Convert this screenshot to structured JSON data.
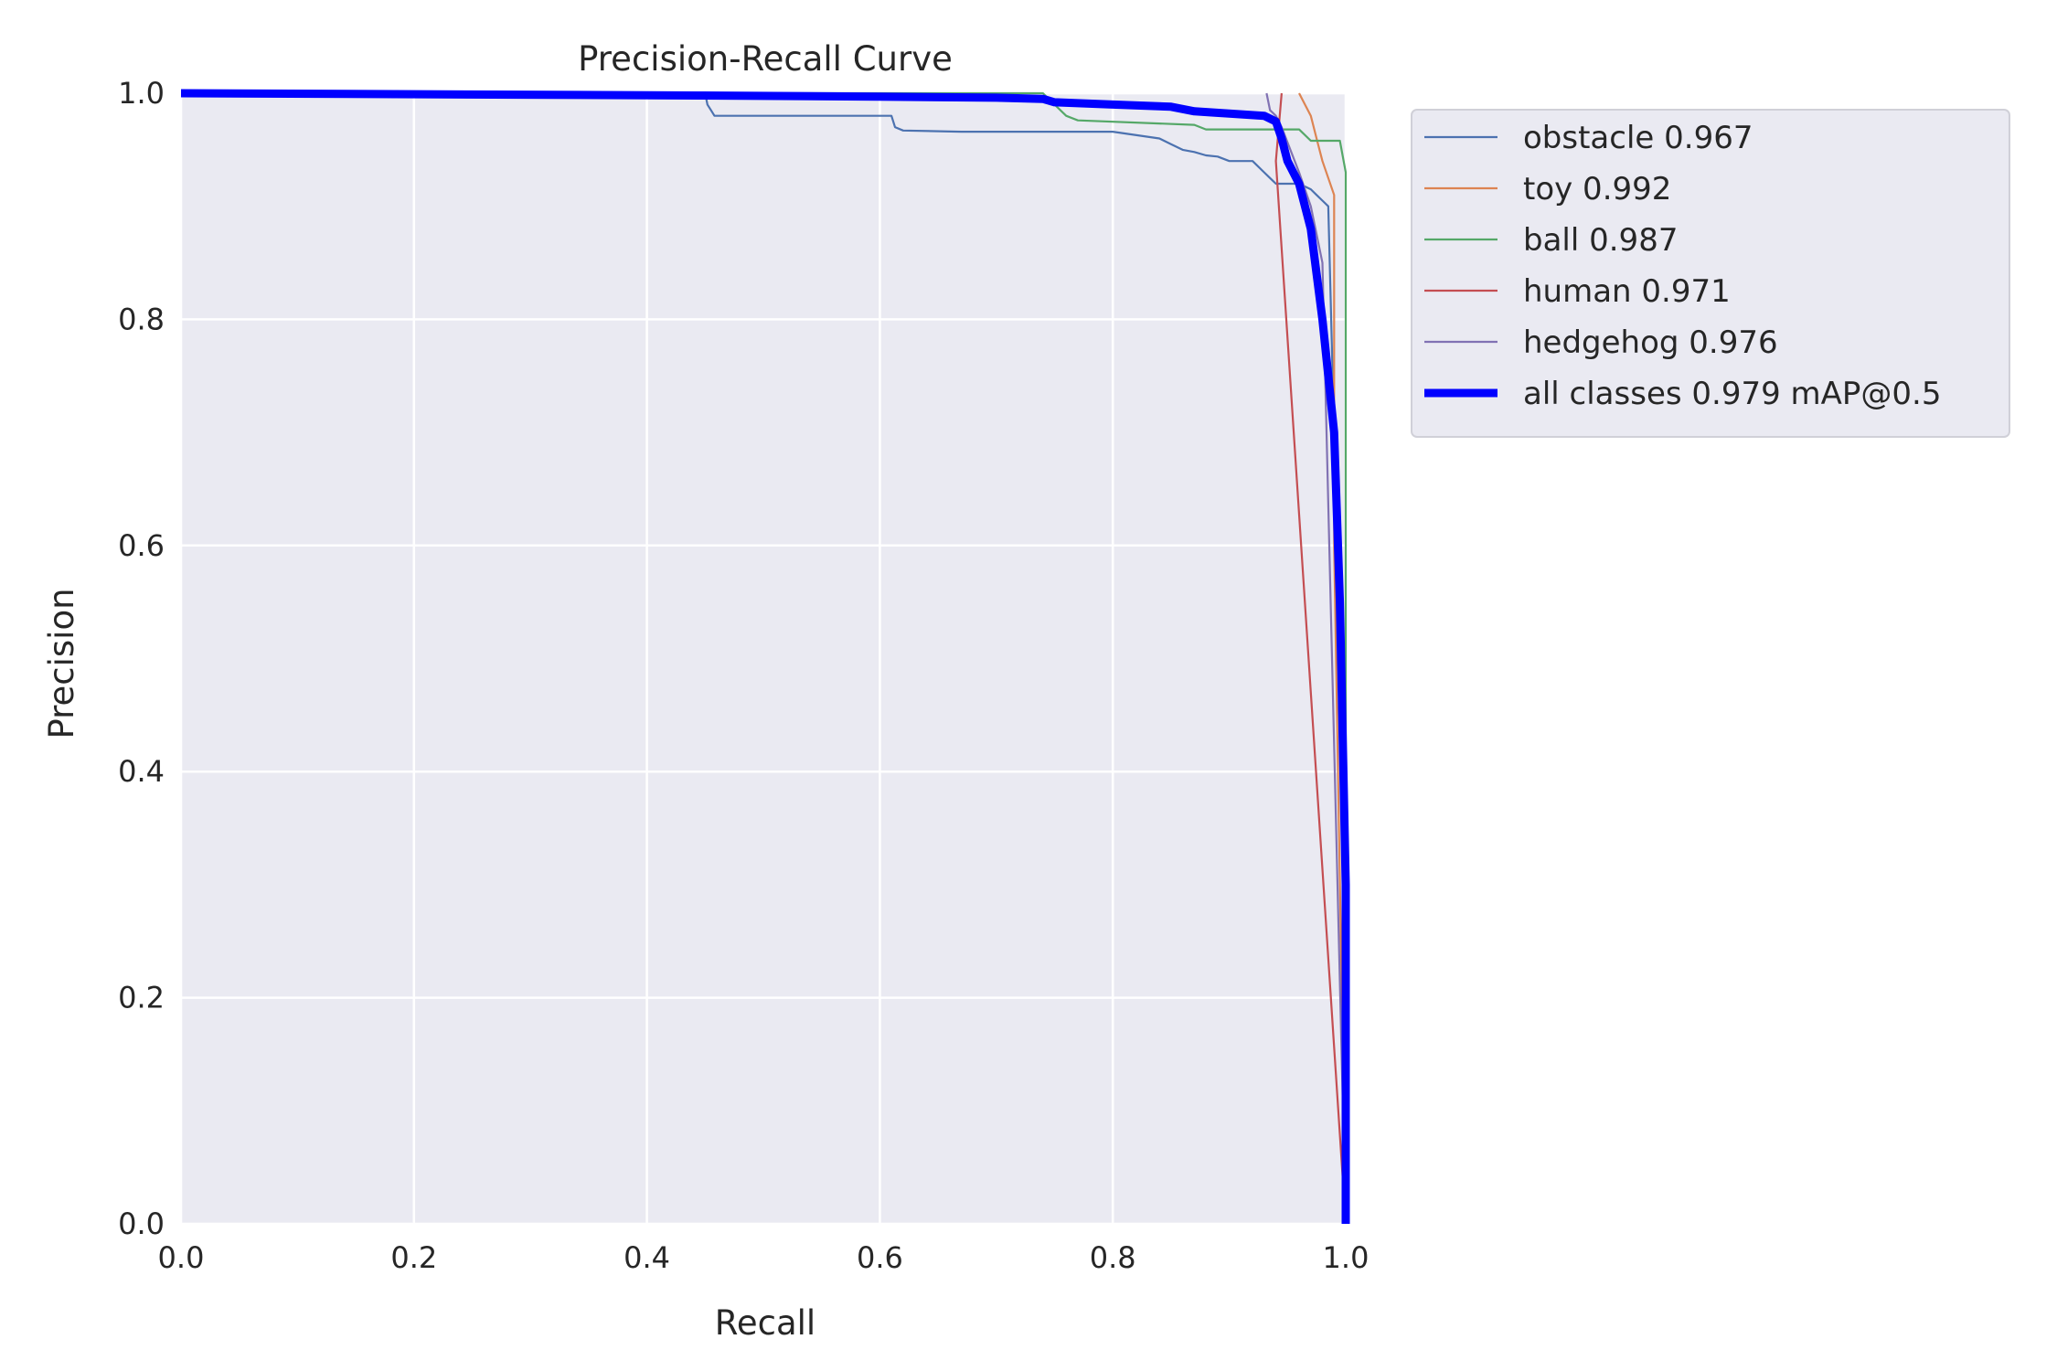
{
  "chart_data": {
    "type": "line",
    "title": "Precision-Recall Curve",
    "xlabel": "Recall",
    "ylabel": "Precision",
    "xlim": [
      0,
      1
    ],
    "ylim": [
      0,
      1
    ],
    "xticks": [
      "0.0",
      "0.2",
      "0.4",
      "0.6",
      "0.8",
      "1.0"
    ],
    "yticks": [
      "0.0",
      "0.2",
      "0.4",
      "0.6",
      "0.8",
      "1.0"
    ],
    "grid": true,
    "legend_position": "outside-top-right",
    "series": [
      {
        "name": "obstacle 0.967",
        "color": "#4c72b0",
        "x": [
          0,
          0.45,
          0.452,
          0.455,
          0.458,
          0.61,
          0.613,
          0.62,
          0.67,
          0.8,
          0.84,
          0.85,
          0.86,
          0.87,
          0.88,
          0.89,
          0.9,
          0.92,
          0.93,
          0.935,
          0.94,
          0.96,
          0.97,
          0.975,
          0.98,
          0.985,
          1.0,
          1.0
        ],
        "y": [
          1.0,
          1.0,
          0.99,
          0.985,
          0.98,
          0.98,
          0.97,
          0.967,
          0.966,
          0.966,
          0.96,
          0.955,
          0.95,
          0.948,
          0.945,
          0.944,
          0.94,
          0.94,
          0.93,
          0.925,
          0.92,
          0.92,
          0.915,
          0.91,
          0.905,
          0.9,
          0.3,
          0.0
        ]
      },
      {
        "name": "toy 0.992",
        "color": "#dd8452",
        "x": [
          0.96,
          0.965,
          0.97,
          0.975,
          0.98,
          0.99,
          0.99,
          1.0
        ],
        "y": [
          1.0,
          0.99,
          0.98,
          0.96,
          0.94,
          0.91,
          0.6,
          0.0
        ]
      },
      {
        "name": "ball 0.987",
        "color": "#55a868",
        "x": [
          0,
          0.74,
          0.75,
          0.76,
          0.77,
          0.87,
          0.88,
          0.96,
          0.97,
          0.995,
          1.0,
          1.0
        ],
        "y": [
          1.0,
          1.0,
          0.99,
          0.98,
          0.976,
          0.972,
          0.968,
          0.968,
          0.958,
          0.958,
          0.93,
          0.0
        ]
      },
      {
        "name": "human 0.971",
        "color": "#c44e52",
        "x": [
          0.945,
          0.94,
          1.0
        ],
        "y": [
          1.0,
          0.94,
          0.0
        ]
      },
      {
        "name": "hedgehog 0.976",
        "color": "#8172b3",
        "x": [
          0.932,
          0.935,
          0.94,
          0.945,
          0.96,
          0.97,
          0.98,
          1.0
        ],
        "y": [
          1.0,
          0.985,
          0.98,
          0.97,
          0.93,
          0.9,
          0.85,
          0.0
        ]
      },
      {
        "name": "all classes 0.979 mAP@0.5",
        "color": "#0000ff",
        "bold": true,
        "x": [
          0,
          0.45,
          0.6,
          0.7,
          0.74,
          0.75,
          0.8,
          0.85,
          0.87,
          0.9,
          0.93,
          0.94,
          0.945,
          0.95,
          0.96,
          0.97,
          0.98,
          0.99,
          0.995,
          1.0,
          1.0
        ],
        "y": [
          1.0,
          0.998,
          0.997,
          0.996,
          0.995,
          0.992,
          0.99,
          0.988,
          0.984,
          0.982,
          0.98,
          0.975,
          0.96,
          0.94,
          0.92,
          0.88,
          0.8,
          0.7,
          0.55,
          0.3,
          0.0
        ]
      }
    ]
  }
}
